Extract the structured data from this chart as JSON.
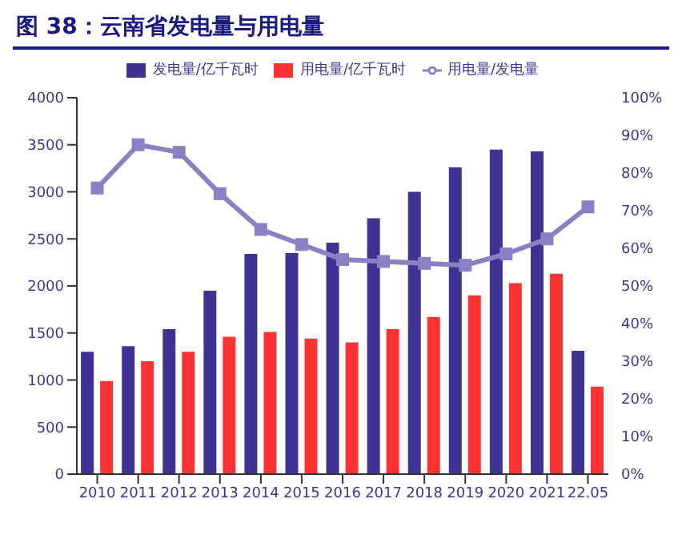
{
  "chart_data": {
    "type": "bar",
    "title": "图 38：云南省发电量与用电量",
    "categories": [
      "2010",
      "2011",
      "2012",
      "2013",
      "2014",
      "2015",
      "2016",
      "2017",
      "2018",
      "2019",
      "2020",
      "2021",
      "22.05"
    ],
    "series": [
      {
        "name": "发电量/亿千瓦时",
        "color": "#3e3393",
        "values": [
          1300,
          1360,
          1540,
          1950,
          2340,
          2350,
          2460,
          2720,
          3000,
          3260,
          3450,
          3430,
          1310
        ]
      },
      {
        "name": "用电量/亿千瓦时",
        "color": "#ff3333",
        "values": [
          990,
          1200,
          1300,
          1460,
          1510,
          1440,
          1400,
          1540,
          1670,
          1900,
          2030,
          2130,
          930
        ]
      },
      {
        "name": "用电量/发电量",
        "type": "line",
        "axis": "y2",
        "color": "#8a80c4",
        "marker": "square",
        "values": [
          76,
          87.5,
          85.5,
          74.5,
          65,
          61,
          57,
          56.5,
          56,
          55.5,
          58.5,
          62.5,
          71
        ]
      }
    ],
    "ylim": [
      0,
      4000
    ],
    "yticks": [
      0,
      500,
      1000,
      1500,
      2000,
      2500,
      3000,
      3500,
      4000
    ],
    "y2lim": [
      0,
      100
    ],
    "y2ticks": [
      {
        "value": 0,
        "label": "0%"
      },
      {
        "value": 10,
        "label": "10%"
      },
      {
        "value": 20,
        "label": "20%"
      },
      {
        "value": 30,
        "label": "30%"
      },
      {
        "value": 40,
        "label": "40%"
      },
      {
        "value": 50,
        "label": "50%"
      },
      {
        "value": 60,
        "label": "60%"
      },
      {
        "value": 70,
        "label": "70%"
      },
      {
        "value": 80,
        "label": "80%"
      },
      {
        "value": 90,
        "label": "90%"
      },
      {
        "value": 100,
        "label": "100%"
      }
    ],
    "grid": false,
    "legend": "top"
  }
}
